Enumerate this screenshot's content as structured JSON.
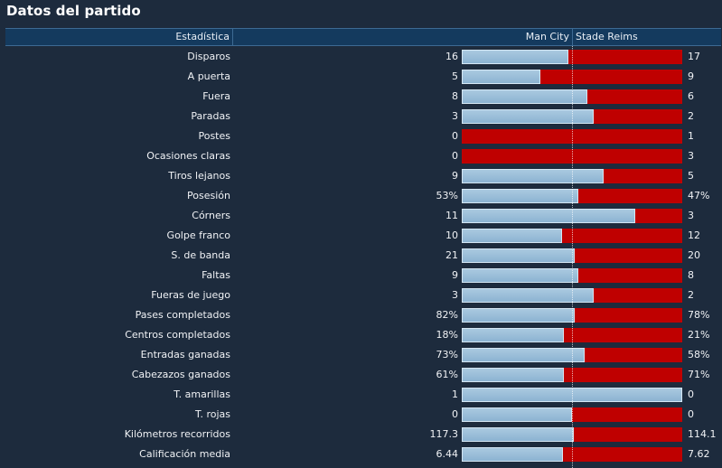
{
  "title": "Datos del partido",
  "header": {
    "stat": "Estadística",
    "home": "Man City",
    "away": "Stade Reims"
  },
  "colors": {
    "home_bar": "#8cb3d2",
    "away_bar": "#bf0000",
    "background": "#1d2b3d",
    "header": "#143a5e"
  },
  "stats": [
    {
      "label": "Disparos",
      "home": "16",
      "away": "17",
      "home_share": 0.485
    },
    {
      "label": "A puerta",
      "home": "5",
      "away": "9",
      "home_share": 0.357
    },
    {
      "label": "Fuera",
      "home": "8",
      "away": "6",
      "home_share": 0.571
    },
    {
      "label": "Paradas",
      "home": "3",
      "away": "2",
      "home_share": 0.6
    },
    {
      "label": "Postes",
      "home": "0",
      "away": "1",
      "home_share": 0
    },
    {
      "label": "Ocasiones claras",
      "home": "0",
      "away": "3",
      "home_share": 0
    },
    {
      "label": "Tiros lejanos",
      "home": "9",
      "away": "5",
      "home_share": 0.643
    },
    {
      "label": "Posesión",
      "home": "53%",
      "away": "47%",
      "home_share": 0.53
    },
    {
      "label": "Córners",
      "home": "11",
      "away": "3",
      "home_share": 0.786
    },
    {
      "label": "Golpe franco",
      "home": "10",
      "away": "12",
      "home_share": 0.455
    },
    {
      "label": "S. de banda",
      "home": "21",
      "away": "20",
      "home_share": 0.512
    },
    {
      "label": "Faltas",
      "home": "9",
      "away": "8",
      "home_share": 0.529
    },
    {
      "label": "Fueras de juego",
      "home": "3",
      "away": "2",
      "home_share": 0.6
    },
    {
      "label": "Pases completados",
      "home": "82%",
      "away": "78%",
      "home_share": 0.512
    },
    {
      "label": "Centros completados",
      "home": "18%",
      "away": "21%",
      "home_share": 0.462
    },
    {
      "label": "Entradas ganadas",
      "home": "73%",
      "away": "58%",
      "home_share": 0.557
    },
    {
      "label": "Cabezazos ganados",
      "home": "61%",
      "away": "71%",
      "home_share": 0.462
    },
    {
      "label": "T. amarillas",
      "home": "1",
      "away": "0",
      "home_share": 1
    },
    {
      "label": "T. rojas",
      "home": "0",
      "away": "0",
      "home_share": 0.5
    },
    {
      "label": "Kilómetros recorridos",
      "home": "117.3",
      "away": "114.1",
      "home_share": 0.507
    },
    {
      "label": "Calificación media",
      "home": "6.44",
      "away": "7.62",
      "home_share": 0.458
    }
  ]
}
